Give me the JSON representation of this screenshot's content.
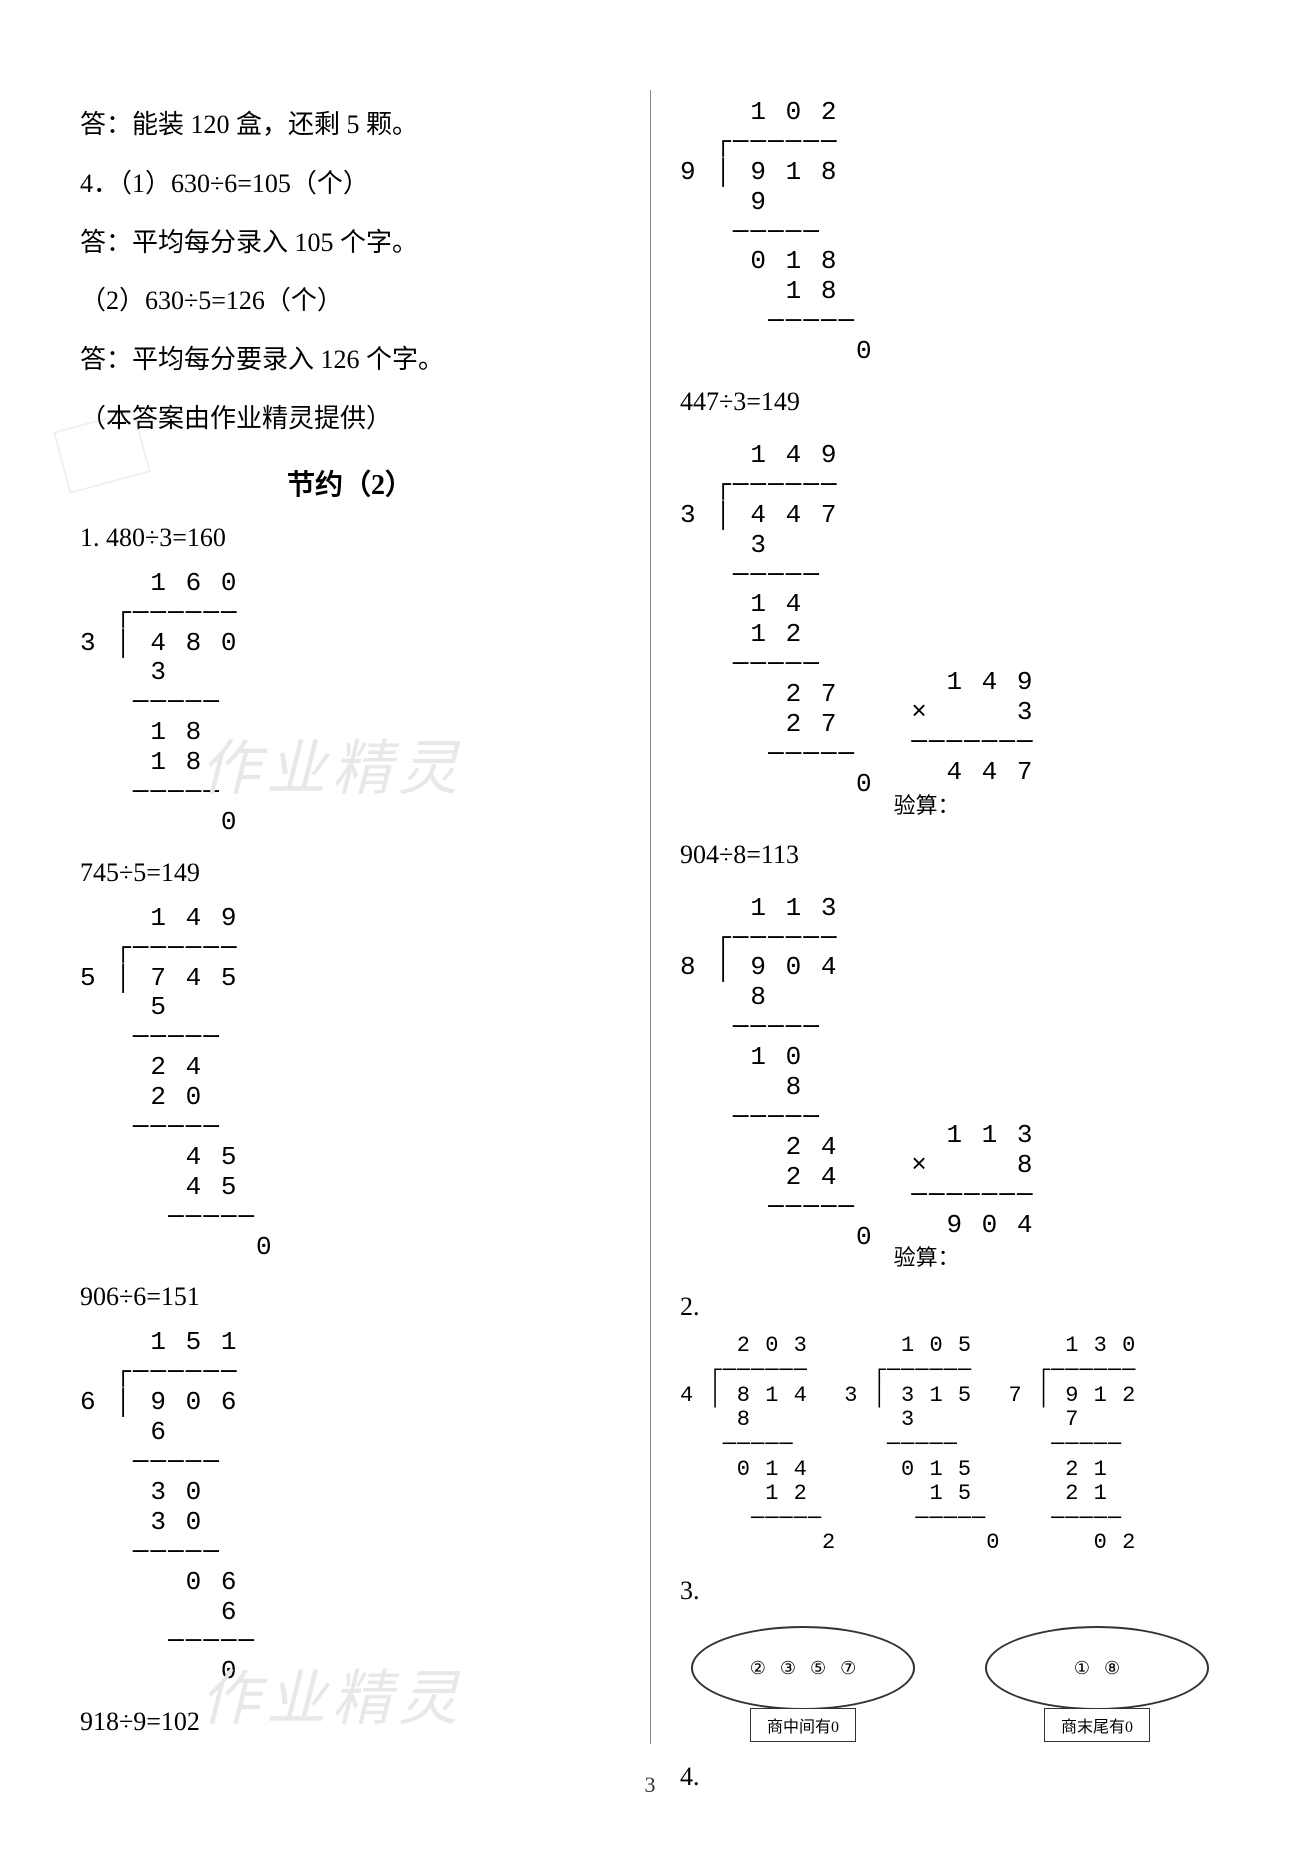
{
  "page_number": "3",
  "font": {
    "body_size_pt": 20,
    "mono_size_pt": 20,
    "title_size_pt": 22
  },
  "colors": {
    "text": "#000000",
    "bg": "#ffffff",
    "divider": "#888888",
    "watermark": "#e8e8e8"
  },
  "watermark_text": "作业精灵",
  "left": {
    "lines": [
      "答：能装 120 盒，还剩 5 颗。",
      "4．（1）630÷6=105（个）",
      "答：平均每分录入 105 个字。",
      "（2）630÷5=126（个）",
      "答：平均每分要录入 126 个字。",
      "（本答案由作业精灵提供）"
    ],
    "section_title": "节约（2）",
    "problems": [
      {
        "eq": "1. 480÷3=160",
        "longdiv": "    1 6 0\n  ┌──────\n3 │ 4 8 0\n    3\n   ─────\n    1 8\n    1 8\n   ─────\n        0"
      },
      {
        "eq": "745÷5=149",
        "longdiv": "    1 4 9\n  ┌──────\n5 │ 7 4 5\n    5\n   ─────\n    2 4\n    2 0\n   ─────\n      4 5\n      4 5\n     ─────\n          0"
      },
      {
        "eq": "906÷6=151",
        "longdiv": "    1 5 1\n  ┌──────\n6 │ 9 0 6\n    6\n   ─────\n    3 0\n    3 0\n   ─────\n      0 6\n        6\n     ─────\n        0"
      },
      {
        "eq": "918÷9=102",
        "longdiv": ""
      }
    ]
  },
  "right": {
    "top_longdiv": "    1 0 2\n  ┌──────\n9 │ 9 1 8\n    9\n   ─────\n    0 1 8\n      1 8\n     ─────\n          0",
    "problems": [
      {
        "eq": "447÷3=149",
        "longdiv": "    1 4 9\n  ┌──────\n3 │ 4 4 7\n    3\n   ─────\n    1 4\n    1 2\n   ─────\n      2 7\n      2 7\n     ─────\n          0",
        "verify_label": "验算：",
        "mult": "   1 4 9\n ×     3\n ───────\n   4 4 7"
      },
      {
        "eq": "904÷8=113",
        "longdiv": "    1 1 3\n  ┌──────\n8 │ 9 0 4\n    8\n   ─────\n    1 0\n      8\n   ─────\n      2 4\n      2 4\n     ─────\n          0",
        "verify_label": "验算：",
        "mult": "   1 1 3\n ×     8\n ───────\n   9 0 4"
      }
    ],
    "q2_label": "2.",
    "q2_divs": [
      "    2 0 3\n  ┌──────\n4 │ 8 1 4\n    8\n   ─────\n    0 1 4\n      1 2\n     ─────\n          2",
      "    1 0 5\n  ┌──────\n3 │ 3 1 5\n    3\n   ─────\n    0 1 5\n      1 5\n     ─────\n          0",
      "    1 3 0\n  ┌──────\n7 │ 9 1 2\n    7\n   ─────\n    2 1\n    2 1\n   ─────\n      0 2"
    ],
    "q3_label": "3.",
    "q3": {
      "left_items": [
        "②",
        "③",
        "⑤",
        "⑦"
      ],
      "left_label": "商中间有0",
      "right_items": [
        "①",
        "⑧"
      ],
      "right_label": "商末尾有0"
    },
    "q4_label": "4."
  }
}
